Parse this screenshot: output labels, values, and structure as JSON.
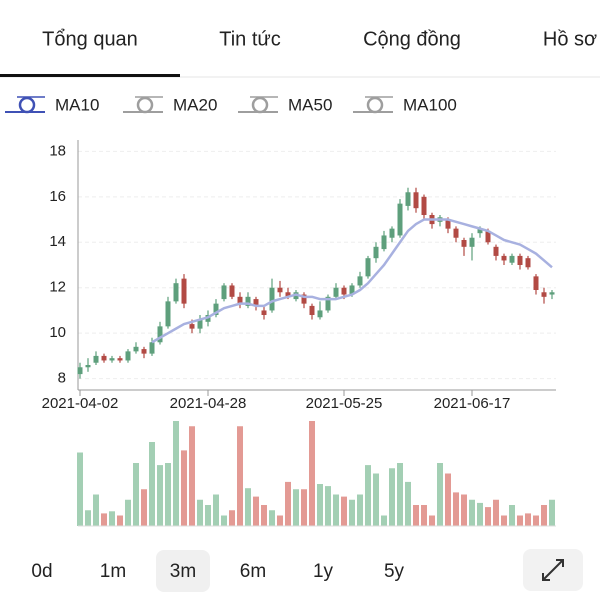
{
  "tabs": [
    "Tổng quan",
    "Tin tức",
    "Cộng đồng",
    "Hồ sơ"
  ],
  "active_tab": 0,
  "indicators": [
    {
      "name": "MA10",
      "color": "#3f51b5",
      "active": true
    },
    {
      "name": "MA20",
      "color": "#9e9e9e",
      "active": false
    },
    {
      "name": "MA50",
      "color": "#9e9e9e",
      "active": false
    },
    {
      "name": "MA100",
      "color": "#9e9e9e",
      "active": false
    }
  ],
  "chart_data": {
    "type": "candlestick",
    "categories": [
      "2021-04-02",
      null,
      null,
      null,
      null,
      null,
      null,
      null,
      null,
      null,
      null,
      null,
      null,
      null,
      null,
      null,
      "2021-04-28",
      null,
      null,
      null,
      null,
      null,
      null,
      null,
      null,
      null,
      null,
      null,
      null,
      null,
      null,
      null,
      null,
      "2021-05-25",
      null,
      null,
      null,
      null,
      null,
      null,
      null,
      null,
      null,
      null,
      null,
      null,
      null,
      null,
      null,
      "2021-06-17",
      null,
      null,
      null,
      null,
      null,
      null,
      null,
      null,
      null,
      null
    ],
    "open": [
      8.2,
      8.5,
      8.7,
      9.0,
      8.8,
      8.9,
      8.8,
      9.2,
      9.3,
      9.1,
      9.6,
      10.3,
      11.4,
      12.4,
      10.4,
      10.2,
      10.5,
      10.8,
      11.5,
      12.1,
      11.6,
      11.2,
      11.5,
      11.0,
      11.0,
      12.0,
      11.8,
      11.5,
      11.7,
      11.2,
      10.7,
      11.0,
      11.6,
      12.0,
      11.7,
      12.1,
      12.5,
      13.3,
      13.7,
      14.2,
      14.3,
      15.6,
      16.2,
      16.0,
      15.2,
      14.9,
      15.0,
      14.6,
      14.1,
      13.8,
      14.4,
      14.5,
      13.8,
      13.4,
      13.1,
      13.4,
      13.3,
      12.5,
      11.8,
      11.7
    ],
    "high": [
      8.7,
      8.9,
      9.2,
      9.1,
      9.0,
      9.0,
      9.3,
      9.6,
      9.4,
      9.8,
      10.5,
      11.6,
      12.4,
      12.6,
      10.6,
      10.8,
      11.0,
      11.5,
      12.2,
      12.2,
      11.8,
      11.8,
      11.6,
      11.2,
      12.4,
      12.3,
      12.0,
      11.9,
      11.8,
      11.3,
      11.4,
      11.7,
      12.2,
      12.1,
      12.2,
      12.7,
      13.4,
      14.0,
      14.5,
      14.7,
      15.9,
      16.4,
      16.4,
      16.1,
      15.3,
      15.2,
      15.1,
      14.7,
      14.2,
      14.4,
      14.7,
      14.6,
      13.9,
      13.5,
      13.5,
      13.5,
      13.4,
      12.6,
      12.0,
      11.9
    ],
    "low": [
      8.0,
      8.3,
      8.6,
      8.7,
      8.7,
      8.7,
      8.7,
      9.1,
      8.9,
      9.0,
      9.5,
      10.2,
      11.3,
      11.1,
      10.0,
      10.0,
      10.3,
      10.7,
      11.4,
      11.5,
      11.1,
      11.1,
      11.0,
      10.6,
      10.9,
      11.6,
      11.5,
      11.4,
      11.1,
      10.6,
      10.6,
      10.9,
      11.5,
      11.5,
      11.6,
      12.0,
      12.4,
      13.1,
      13.6,
      14.0,
      14.2,
      15.4,
      15.3,
      15.0,
      14.6,
      14.7,
      14.4,
      14.0,
      13.4,
      13.2,
      14.2,
      13.9,
      13.2,
      13.0,
      13.0,
      12.8,
      12.8,
      11.7,
      11.3,
      11.5
    ],
    "close": [
      8.5,
      8.6,
      9.0,
      8.8,
      8.9,
      8.8,
      9.2,
      9.4,
      9.1,
      9.6,
      10.3,
      11.4,
      12.2,
      11.3,
      10.2,
      10.6,
      10.8,
      11.3,
      12.1,
      11.6,
      11.3,
      11.6,
      11.2,
      10.8,
      12.0,
      11.8,
      11.6,
      11.8,
      11.3,
      10.8,
      11.0,
      11.6,
      12.0,
      11.7,
      12.1,
      12.5,
      13.3,
      13.8,
      14.3,
      14.6,
      15.7,
      16.2,
      15.5,
      15.2,
      14.8,
      15.1,
      14.6,
      14.2,
      13.8,
      14.2,
      14.6,
      14.0,
      13.4,
      13.2,
      13.4,
      13.0,
      12.9,
      11.9,
      11.6,
      11.8
    ],
    "volume": [
      70,
      15,
      30,
      12,
      14,
      10,
      25,
      60,
      35,
      80,
      58,
      60,
      100,
      72,
      95,
      25,
      20,
      30,
      10,
      15,
      95,
      36,
      28,
      20,
      15,
      10,
      42,
      35,
      35,
      100,
      40,
      38,
      30,
      28,
      25,
      30,
      58,
      50,
      10,
      55,
      60,
      42,
      20,
      20,
      10,
      60,
      50,
      32,
      30,
      25,
      22,
      18,
      25,
      10,
      20,
      10,
      12,
      10,
      20,
      25
    ],
    "up_color": "#5e9f7c",
    "down_color": "#b24a44",
    "volume_up_color": "#a3cfb4",
    "volume_down_color": "#e39a94",
    "series": [
      {
        "name": "MA10",
        "color": "#a8b1e0",
        "values": [
          null,
          null,
          null,
          null,
          null,
          null,
          null,
          null,
          null,
          9.6,
          9.8,
          10.0,
          10.2,
          10.4,
          10.5,
          10.6,
          10.7,
          10.9,
          11.1,
          11.2,
          11.3,
          11.3,
          11.2,
          11.2,
          11.4,
          11.5,
          11.6,
          11.7,
          11.6,
          11.6,
          11.5,
          11.5,
          11.5,
          11.6,
          11.7,
          11.9,
          12.2,
          12.6,
          13.0,
          13.5,
          14.0,
          14.5,
          14.8,
          15.0,
          15.0,
          15.0,
          15.0,
          14.9,
          14.8,
          14.7,
          14.6,
          14.5,
          14.3,
          14.1,
          14.0,
          13.9,
          13.7,
          13.5,
          13.2,
          12.9
        ]
      }
    ],
    "ylim": [
      7.5,
      18.5
    ],
    "yticks": [
      8,
      10,
      12,
      14,
      16,
      18
    ],
    "grid": true
  },
  "ranges": [
    "0d",
    "1m",
    "3m",
    "6m",
    "1y",
    "5y"
  ],
  "active_range": 2
}
